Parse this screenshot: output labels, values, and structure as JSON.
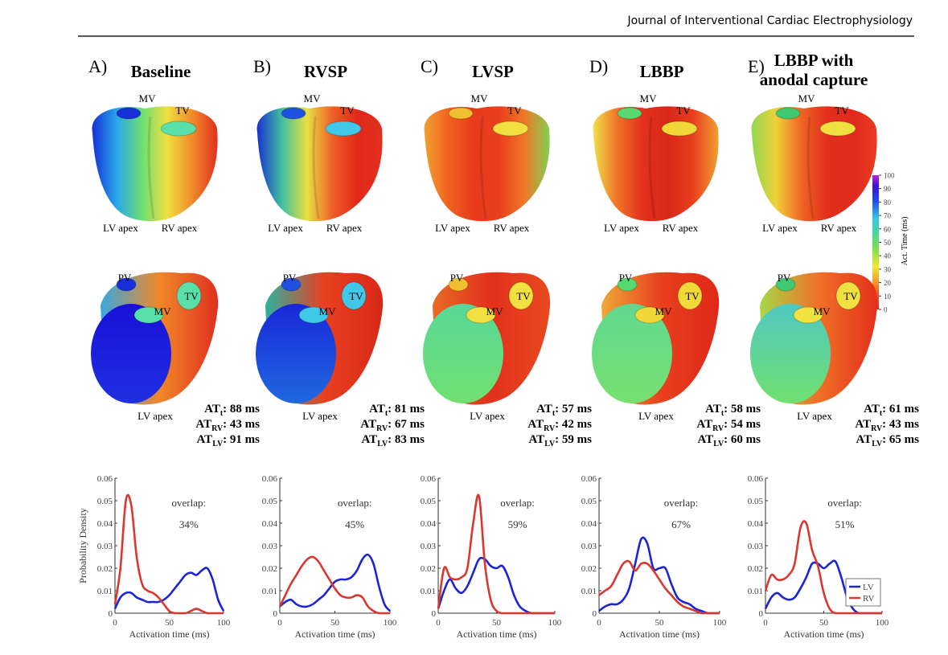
{
  "header": {
    "journal": "Journal of Interventional Cardiac Electrophysiology"
  },
  "panels": [
    {
      "label": "A)",
      "title": [
        "Baseline"
      ],
      "heart_labels": {
        "top": [
          "MV",
          "TV",
          "LV apex",
          "RV apex"
        ],
        "bottom": [
          "PV",
          "MV",
          "TV",
          "LV apex"
        ]
      },
      "stats": [
        {
          "name": "AT",
          "sub": "t",
          "text": ": 88 ms"
        },
        {
          "name": "AT",
          "sub": "RV",
          "text": ": 43 ms"
        },
        {
          "name": "AT",
          "sub": "LV",
          "text": ": 91 ms"
        }
      ]
    },
    {
      "label": "B)",
      "title": [
        "RVSP"
      ],
      "heart_labels": {
        "top": [
          "MV",
          "TV",
          "LV apex",
          "RV apex"
        ],
        "bottom": [
          "PV",
          "MV",
          "TV",
          "LV apex"
        ]
      },
      "stats": [
        {
          "name": "AT",
          "sub": "t",
          "text": ": 81 ms"
        },
        {
          "name": "AT",
          "sub": "RV",
          "text": ": 67 ms"
        },
        {
          "name": "AT",
          "sub": "LV",
          "text": ": 83 ms"
        }
      ]
    },
    {
      "label": "C)",
      "title": [
        "LVSP"
      ],
      "heart_labels": {
        "top": [
          "MV",
          "TV",
          "LV apex",
          "RV apex"
        ],
        "bottom": [
          "PV",
          "MV",
          "TV",
          "LV apex"
        ]
      },
      "stats": [
        {
          "name": "AT",
          "sub": "t",
          "text": ": 57 ms"
        },
        {
          "name": "AT",
          "sub": "RV",
          "text": ": 42 ms"
        },
        {
          "name": "AT",
          "sub": "LV",
          "text": ": 59 ms"
        }
      ]
    },
    {
      "label": "D)",
      "title": [
        "LBBP"
      ],
      "heart_labels": {
        "top": [
          "MV",
          "TV",
          "LV apex",
          "RV apex"
        ],
        "bottom": [
          "PV",
          "MV",
          "TV",
          "LV apex"
        ]
      },
      "stats": [
        {
          "name": "AT",
          "sub": "t",
          "text": ": 58 ms"
        },
        {
          "name": "AT",
          "sub": "RV",
          "text": ": 54 ms"
        },
        {
          "name": "AT",
          "sub": "LV",
          "text": ": 60 ms"
        }
      ]
    },
    {
      "label": "E)",
      "title": [
        "LBBP with",
        "anodal capture"
      ],
      "heart_labels": {
        "top": [
          "MV",
          "TV",
          "LV apex",
          "RV apex"
        ],
        "bottom": [
          "PV",
          "MV",
          "TV",
          "LV apex"
        ]
      },
      "stats": [
        {
          "name": "AT",
          "sub": "t",
          "text": ": 61 ms"
        },
        {
          "name": "AT",
          "sub": "RV",
          "text": ": 43 ms"
        },
        {
          "name": "AT",
          "sub": "LV",
          "text": ": 65 ms"
        }
      ]
    }
  ],
  "colorbar": {
    "label": "Act. Time (ms)",
    "ticks": [
      0,
      10,
      20,
      30,
      40,
      50,
      60,
      70,
      80,
      90,
      100
    ]
  },
  "chart_data": [
    {
      "type": "line",
      "ylabel": "Probability Density",
      "xlabel": "Activation time (ms)",
      "annotations": [
        "overlap:",
        "34%"
      ],
      "x": [
        0,
        5,
        10,
        15,
        20,
        25,
        30,
        35,
        40,
        45,
        50,
        55,
        60,
        65,
        70,
        75,
        80,
        85,
        90,
        95,
        100
      ],
      "series": [
        {
          "color": "#1c24d8",
          "values": [
            0.002,
            0.007,
            0.009,
            0.009,
            0.007,
            0.006,
            0.005,
            0.005,
            0.005,
            0.006,
            0.008,
            0.011,
            0.014,
            0.017,
            0.018,
            0.017,
            0.019,
            0.02,
            0.015,
            0.006,
            0.001
          ]
        },
        {
          "color": "#d9382e",
          "values": [
            0.004,
            0.02,
            0.05,
            0.048,
            0.025,
            0.013,
            0.01,
            0.009,
            0.007,
            0.004,
            0.001,
            0,
            0,
            0,
            0.001,
            0.002,
            0.001,
            0,
            0,
            0,
            0
          ]
        }
      ],
      "xlim": [
        0,
        100
      ],
      "ylim": [
        0,
        0.06
      ],
      "xticks": [
        0,
        50,
        100
      ],
      "yticks": [
        0,
        0.01,
        0.02,
        0.03,
        0.04,
        0.05,
        0.06
      ],
      "legend": false
    },
    {
      "type": "line",
      "xlabel": "Activation time (ms)",
      "annotations": [
        "overlap:",
        "45%"
      ],
      "x": [
        0,
        5,
        10,
        15,
        20,
        25,
        30,
        35,
        40,
        45,
        50,
        55,
        60,
        65,
        70,
        75,
        80,
        85,
        90,
        95,
        100
      ],
      "series": [
        {
          "color": "#1c24d8",
          "values": [
            0.003,
            0.005,
            0.006,
            0.004,
            0.003,
            0.003,
            0.004,
            0.006,
            0.008,
            0.011,
            0.014,
            0.015,
            0.015,
            0.016,
            0.019,
            0.024,
            0.026,
            0.022,
            0.012,
            0.004,
            0.001
          ]
        },
        {
          "color": "#d9382e",
          "values": [
            0.003,
            0.008,
            0.013,
            0.017,
            0.021,
            0.024,
            0.025,
            0.023,
            0.019,
            0.015,
            0.011,
            0.008,
            0.007,
            0.007,
            0.008,
            0.007,
            0.003,
            0.001,
            0,
            0,
            0
          ]
        }
      ],
      "xlim": [
        0,
        100
      ],
      "ylim": [
        0,
        0.06
      ],
      "xticks": [
        0,
        50,
        100
      ],
      "yticks": [
        0,
        0.01,
        0.02,
        0.03,
        0.04,
        0.05,
        0.06
      ],
      "legend": false
    },
    {
      "type": "line",
      "xlabel": "Activation time (ms)",
      "annotations": [
        "overlap:",
        "59%"
      ],
      "x": [
        0,
        5,
        10,
        15,
        20,
        25,
        30,
        35,
        40,
        45,
        50,
        55,
        60,
        65,
        70,
        75,
        80,
        85,
        90,
        95,
        100
      ],
      "series": [
        {
          "color": "#1c24d8",
          "values": [
            0.002,
            0.01,
            0.015,
            0.011,
            0.009,
            0.012,
            0.018,
            0.024,
            0.024,
            0.021,
            0.02,
            0.021,
            0.016,
            0.008,
            0.003,
            0.001,
            0,
            0,
            0,
            0,
            0
          ]
        },
        {
          "color": "#d9382e",
          "values": [
            0.002,
            0.02,
            0.016,
            0.015,
            0.016,
            0.02,
            0.04,
            0.052,
            0.022,
            0.006,
            0.001,
            0,
            0,
            0,
            0,
            0,
            0,
            0,
            0,
            0,
            0
          ]
        }
      ],
      "xlim": [
        0,
        100
      ],
      "ylim": [
        0,
        0.06
      ],
      "xticks": [
        0,
        50,
        100
      ],
      "yticks": [
        0,
        0.01,
        0.02,
        0.03,
        0.04,
        0.05,
        0.06
      ],
      "legend": false
    },
    {
      "type": "line",
      "xlabel": "Activation time (ms)",
      "annotations": [
        "overlap:",
        "67%"
      ],
      "x": [
        0,
        5,
        10,
        15,
        20,
        25,
        30,
        35,
        40,
        45,
        50,
        55,
        60,
        65,
        70,
        75,
        80,
        85,
        90,
        95,
        100
      ],
      "series": [
        {
          "color": "#1c24d8",
          "values": [
            0.001,
            0.003,
            0.004,
            0.004,
            0.006,
            0.011,
            0.022,
            0.033,
            0.031,
            0.02,
            0.02,
            0.02,
            0.013,
            0.007,
            0.005,
            0.004,
            0.002,
            0.001,
            0,
            0,
            0
          ]
        },
        {
          "color": "#d9382e",
          "values": [
            0.008,
            0.01,
            0.012,
            0.017,
            0.022,
            0.023,
            0.019,
            0.022,
            0.022,
            0.019,
            0.015,
            0.011,
            0.008,
            0.005,
            0.003,
            0.002,
            0.001,
            0,
            0,
            0,
            0
          ]
        }
      ],
      "xlim": [
        0,
        100
      ],
      "ylim": [
        0,
        0.06
      ],
      "xticks": [
        0,
        50,
        100
      ],
      "yticks": [
        0,
        0.01,
        0.02,
        0.03,
        0.04,
        0.05,
        0.06
      ],
      "legend": false
    },
    {
      "type": "line",
      "xlabel": "Activation time (ms)",
      "annotations": [
        "overlap:",
        "51%"
      ],
      "x": [
        0,
        5,
        10,
        15,
        20,
        25,
        30,
        35,
        40,
        45,
        50,
        55,
        60,
        65,
        70,
        75,
        80,
        85,
        90,
        95,
        100
      ],
      "series": [
        {
          "name": "LV",
          "color": "#1c24d8",
          "values": [
            0.002,
            0.007,
            0.009,
            0.007,
            0.006,
            0.007,
            0.011,
            0.016,
            0.022,
            0.022,
            0.02,
            0.022,
            0.023,
            0.016,
            0.007,
            0.002,
            0,
            0,
            0,
            0,
            0
          ]
        },
        {
          "name": "RV",
          "color": "#d9382e",
          "values": [
            0.01,
            0.017,
            0.015,
            0.015,
            0.017,
            0.022,
            0.038,
            0.04,
            0.028,
            0.021,
            0.009,
            0.002,
            0,
            0,
            0,
            0,
            0,
            0,
            0,
            0,
            0
          ]
        }
      ],
      "xlim": [
        0,
        100
      ],
      "ylim": [
        0,
        0.06
      ],
      "xticks": [
        0,
        50,
        100
      ],
      "yticks": [
        0,
        0.01,
        0.02,
        0.03,
        0.04,
        0.05,
        0.06
      ],
      "legend": "lower right"
    }
  ]
}
